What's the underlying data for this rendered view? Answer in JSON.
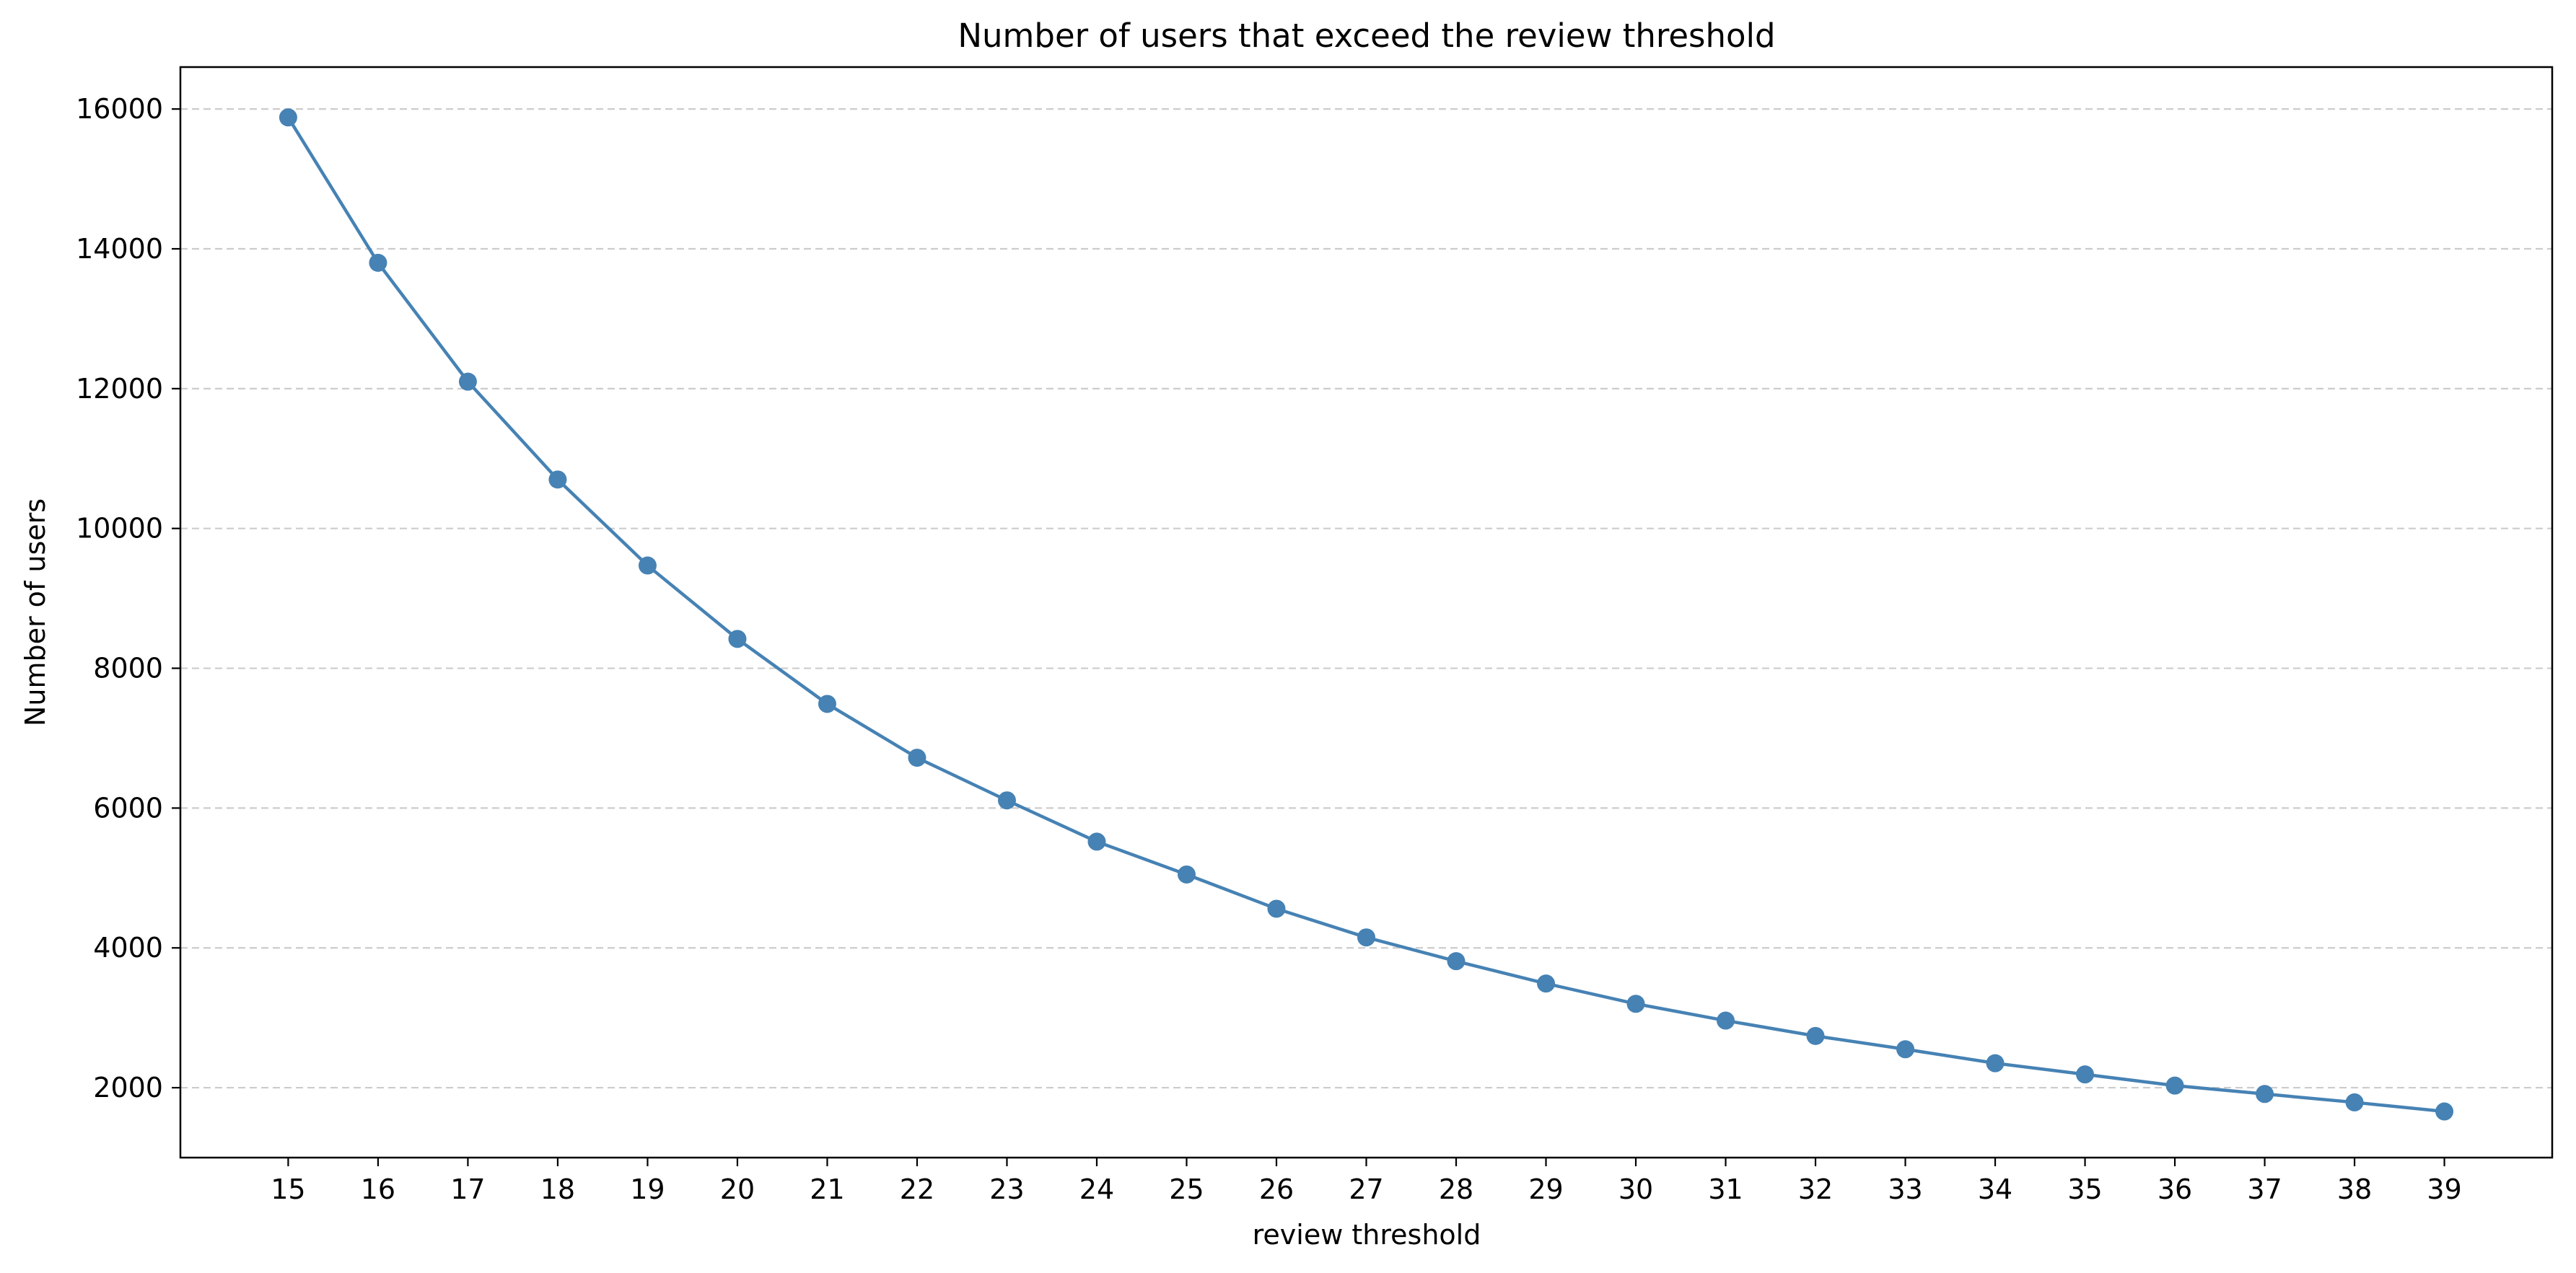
{
  "chart_data": {
    "type": "line",
    "title": "Number of users that exceed the review threshold",
    "xlabel": "review threshold",
    "ylabel": "Number of users",
    "x": [
      15,
      16,
      17,
      18,
      19,
      20,
      21,
      22,
      23,
      24,
      25,
      26,
      27,
      28,
      29,
      30,
      31,
      32,
      33,
      34,
      35,
      36,
      37,
      38,
      39
    ],
    "x_ticks": [
      "15",
      "16",
      "17",
      "18",
      "19",
      "20",
      "21",
      "22",
      "23",
      "24",
      "25",
      "26",
      "27",
      "28",
      "29",
      "30",
      "31",
      "32",
      "33",
      "34",
      "35",
      "36",
      "37",
      "38",
      "39"
    ],
    "y_ticks": [
      2000,
      4000,
      6000,
      8000,
      10000,
      12000,
      14000,
      16000
    ],
    "y_tick_labels": [
      "2000",
      "4000",
      "6000",
      "8000",
      "10000",
      "12000",
      "14000",
      "16000"
    ],
    "xlim": [
      13.8,
      40.2
    ],
    "ylim": [
      1000,
      16600
    ],
    "grid": "y-dashed",
    "series": [
      {
        "color": "#4682b4",
        "marker": "circle",
        "values": [
          15880,
          13800,
          12100,
          10700,
          9470,
          8420,
          7490,
          6720,
          6110,
          5520,
          5050,
          4560,
          4150,
          3810,
          3490,
          3200,
          2960,
          2740,
          2550,
          2350,
          2190,
          2030,
          1910,
          1790,
          1660
        ]
      }
    ]
  }
}
